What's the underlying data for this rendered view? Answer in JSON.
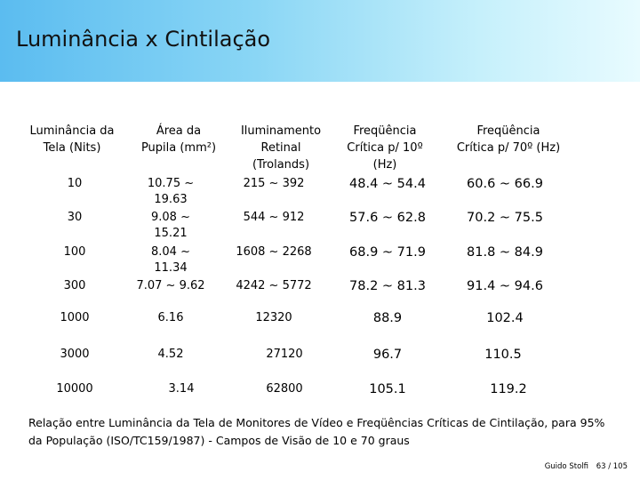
{
  "title": "Luminância x Cintilação",
  "table": {
    "headers": {
      "col1": [
        "Luminância da",
        "Tela (Nits)"
      ],
      "col2": [
        "Área da",
        "Pupila (mm²)"
      ],
      "col3": [
        "Iluminamento",
        "Retinal",
        "(Trolands)"
      ],
      "col4": [
        "Freqüência",
        "Crítica p/ 10º",
        "(Hz)"
      ],
      "col5": [
        "Freqüência",
        "Crítica p/ 70º (Hz)"
      ]
    },
    "rows": [
      {
        "lum": "10",
        "area": [
          "10.75 ~",
          "19.63"
        ],
        "ill": "215 ~ 392",
        "f10": "48.4 ~ 54.4",
        "f70": "60.6 ~ 66.9"
      },
      {
        "lum": "30",
        "area": [
          "9.08 ~",
          "15.21"
        ],
        "ill": "544 ~ 912",
        "f10": "57.6 ~ 62.8",
        "f70": "70.2 ~ 75.5"
      },
      {
        "lum": "100",
        "area": [
          "8.04 ~",
          "11.34"
        ],
        "ill": "1608 ~ 2268",
        "f10": "68.9 ~ 71.9",
        "f70": "81.8 ~ 84.9"
      },
      {
        "lum": "300",
        "area": [
          "7.07 ~ 9.62"
        ],
        "ill": "4242 ~ 5772",
        "f10": "78.2 ~ 81.3",
        "f70": "91.4 ~ 94.6"
      },
      {
        "lum": "1000",
        "area": [
          "6.16"
        ],
        "ill": "12320",
        "f10": "88.9",
        "f70": "102.4"
      },
      {
        "lum": "3000",
        "area": [
          "4.52"
        ],
        "ill": "27120",
        "f10": "96.7",
        "f70": "110.5"
      },
      {
        "lum": "10000",
        "area": [
          "3.14"
        ],
        "ill": "62800",
        "f10": "105.1",
        "f70": "119.2"
      }
    ]
  },
  "caption": "Relação entre Luminância da Tela de Monitores de Vídeo e Freqüências Críticas de Cintilação, para 95% da População (ISO/TC159/1987) - Campos de Visão de 10 e 70 graus",
  "footer": {
    "author": "Guido Stolfi",
    "page": "63 / 105"
  }
}
